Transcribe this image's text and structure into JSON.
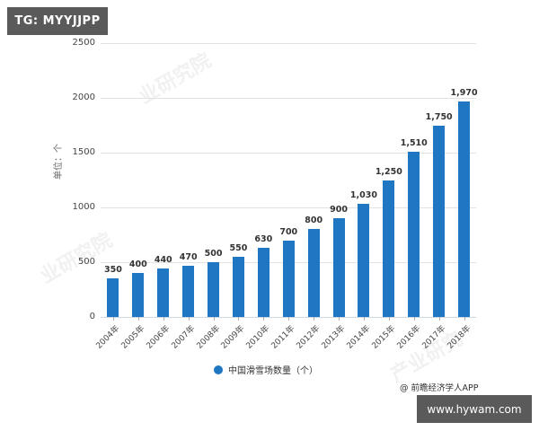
{
  "badges": {
    "top_left": "TG: MYYJJPP",
    "bottom_right": "www.hywam.com"
  },
  "source_credit": "@ 前瞻经济学人APP",
  "legend": {
    "label": "中国滑雪场数量（个）",
    "color": "#1f76c3"
  },
  "y_axis": {
    "label": "单位：个",
    "ticks": [
      "0",
      "500",
      "1000",
      "1500",
      "2000",
      "2500"
    ]
  },
  "bar_labels": [
    "350",
    "400",
    "440",
    "470",
    "500",
    "550",
    "630",
    "700",
    "800",
    "900",
    "1,030",
    "1,250",
    "1,510",
    "1,750",
    "1,970"
  ],
  "x_labels": [
    "2004年",
    "2005年",
    "2006年",
    "2007年",
    "2008年",
    "2009年",
    "2010年",
    "2011年",
    "2012年",
    "2013年",
    "2014年",
    "2015年",
    "2016年",
    "2017年",
    "2018年"
  ],
  "chart_data": {
    "type": "bar",
    "title": "",
    "categories": [
      "2004年",
      "2005年",
      "2006年",
      "2007年",
      "2008年",
      "2009年",
      "2010年",
      "2011年",
      "2012年",
      "2013年",
      "2014年",
      "2015年",
      "2016年",
      "2017年",
      "2018年"
    ],
    "series": [
      {
        "name": "中国滑雪场数量（个）",
        "values": [
          350,
          400,
          440,
          470,
          500,
          550,
          630,
          700,
          800,
          900,
          1030,
          1250,
          1510,
          1750,
          1970
        ],
        "color": "#1f76c3"
      }
    ],
    "xlabel": "",
    "ylabel": "单位：个",
    "ylim": [
      0,
      2500
    ],
    "yticks": [
      0,
      500,
      1000,
      1500,
      2000,
      2500
    ],
    "grid": true,
    "legend_position": "bottom",
    "data_labels": true
  }
}
